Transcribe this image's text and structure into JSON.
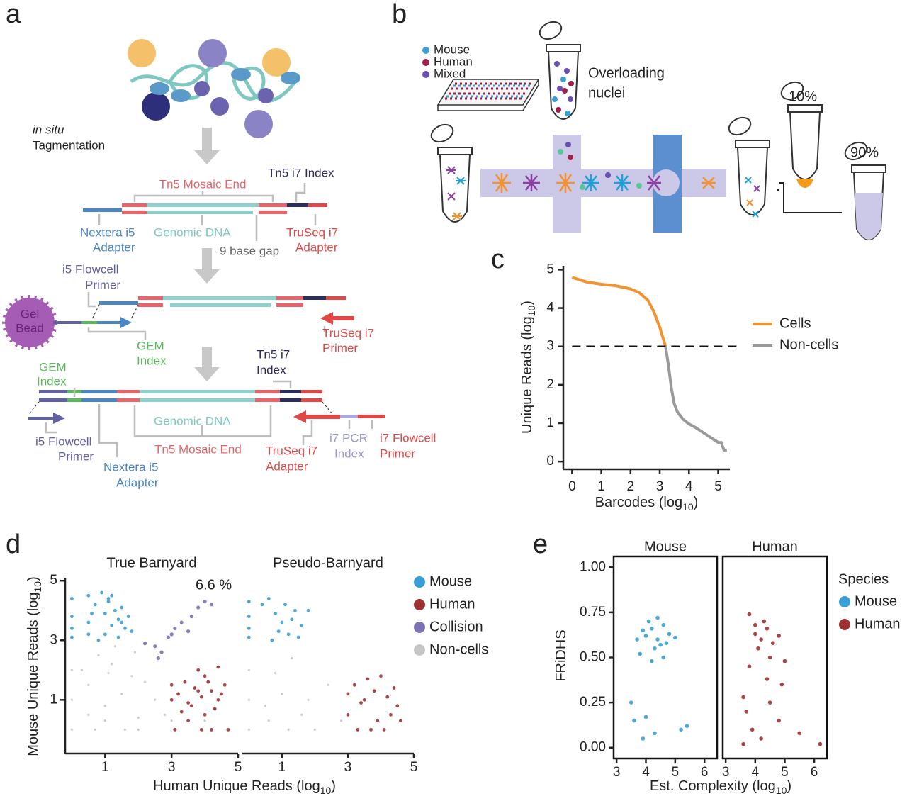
{
  "panel_a": {
    "letter": "a",
    "in_situ": "in situ",
    "tagmentation": "Tagmentation",
    "mosaic_end_1": "Tn5 Mosaic End",
    "tn5_i7_index_1": "Tn5 i7 Index",
    "nextera_1": [
      "Nextera i5",
      "Adapter"
    ],
    "genomic_dna_1": "Genomic DNA",
    "gap": "9 base gap",
    "truseq_adapter_1": [
      "TruSeq i7",
      "Adapter"
    ],
    "i5_primer_1": [
      "i5 Flowcell",
      "Primer"
    ],
    "gel_bead": [
      "Gel",
      "Bead"
    ],
    "gem_index_1": [
      "GEM",
      "Index"
    ],
    "truseq_primer": [
      "TruSeq i7",
      "Primer"
    ],
    "tn5_i7_index_2": [
      "Tn5 i7",
      "Index"
    ],
    "gem_index_2": [
      "GEM",
      "Index"
    ],
    "genomic_dna_2": "Genomic DNA",
    "mosaic_end_2": "Tn5 Mosaic End",
    "i5_primer_2": [
      "i5 Flowcell",
      "Primer"
    ],
    "nextera_2": [
      "Nextera i5",
      "Adapter"
    ],
    "truseq_adapter_2": [
      "TruSeq i7",
      "Adapter"
    ],
    "i7_pcr_index": [
      "i7 PCR",
      "Index"
    ],
    "i7_flowcell_primer": [
      "i7 Flowcell",
      "Primer"
    ]
  },
  "panel_b": {
    "letter": "b",
    "legend": [
      "Mouse",
      "Human",
      "Mixed"
    ],
    "overloading": [
      "Overloading",
      "nuclei"
    ],
    "fraction_small": "10%",
    "fraction_large": "90%"
  },
  "chart_data": [
    {
      "type": "line",
      "panel_label": "c",
      "xlabel": {
        "text": "Barcodes (log",
        "sub": "10",
        "end": ")"
      },
      "ylabel": {
        "text": "Unique Reads (log",
        "sub": "10",
        "end": ")"
      },
      "xlim": [
        -0.3,
        5.4
      ],
      "ylim": [
        -0.2,
        5.1
      ],
      "xticks": [
        0,
        1,
        2,
        3,
        4,
        5
      ],
      "yticks": [
        0,
        1,
        2,
        3,
        4,
        5
      ],
      "threshold": 3,
      "series": [
        {
          "name": "Cells",
          "color": "#f39231",
          "x": [
            0,
            0.2,
            0.5,
            1,
            1.5,
            2,
            2.3,
            2.6,
            2.8,
            3.0,
            3.2
          ],
          "values": [
            4.8,
            4.75,
            4.68,
            4.62,
            4.58,
            4.5,
            4.4,
            4.2,
            3.9,
            3.5,
            3.0
          ]
        },
        {
          "name": "Non-cells",
          "color": "#999999",
          "x": [
            3.2,
            3.3,
            3.4,
            3.5,
            3.6,
            3.8,
            4.0,
            4.2,
            4.4,
            4.6,
            4.8,
            5.0,
            5.1,
            5.2,
            5.3
          ],
          "values": [
            3.0,
            2.5,
            1.9,
            1.5,
            1.3,
            1.1,
            0.98,
            0.9,
            0.8,
            0.7,
            0.6,
            0.5,
            0.5,
            0.3,
            0.3
          ]
        }
      ]
    },
    {
      "type": "scatter",
      "panel_label": "d",
      "xlabel": {
        "text": "Human Unique Reads (log",
        "sub": "10",
        "end": ")"
      },
      "ylabel": {
        "text": "Mouse Unique Reads (log",
        "sub": "10",
        "end": ")"
      },
      "xlim": [
        -0.2,
        5.0
      ],
      "ylim": [
        -0.8,
        5.1
      ],
      "xticks": [
        1,
        3,
        5
      ],
      "yticks": [
        1,
        3,
        5
      ],
      "facets": [
        {
          "title": "True Barnyard",
          "annotation": "6.6 %"
        },
        {
          "title": "Pseudo-Barnyard"
        }
      ],
      "series": [
        {
          "name": "Mouse",
          "color": "#3a9fd6",
          "x": [
            [
              0,
              0,
              0,
              0,
              0.5,
              0.5,
              0.5,
              0.7,
              0.9,
              1,
              1.1,
              1.2,
              1.3,
              1.4,
              1.5,
              1.6,
              1.7,
              1.8,
              0.8,
              1.0,
              1.2,
              1.5,
              0.6,
              1.1,
              1.4
            ],
            [
              0,
              0,
              0,
              0,
              0.4,
              0.6,
              0.8,
              1.0,
              1.2,
              1.4,
              1.6,
              1.8,
              0.9,
              1.1,
              0.7,
              1.3,
              1.5
            ]
          ],
          "values": [
            [
              4.4,
              3.8,
              3.4,
              3.1,
              4.5,
              3.6,
              3.2,
              4.2,
              4.6,
              3.9,
              4.3,
              3.5,
              4.0,
              3.7,
              4.1,
              3.4,
              3.8,
              3.3,
              3.0,
              3.2,
              4.5,
              3.6,
              3.9,
              4.4,
              3.1
            ],
            [
              4.3,
              3.8,
              3.4,
              3.1,
              4.2,
              4.4,
              3.9,
              3.6,
              3.2,
              4.0,
              3.5,
              4.0,
              3.3,
              4.2,
              3.0,
              3.7,
              3.1
            ]
          ]
        },
        {
          "name": "Human",
          "color": "#9e3232",
          "x": [
            [
              3,
              3.2,
              3.4,
              3.5,
              3.7,
              3.9,
              4.0,
              4.2,
              4.4,
              4.6,
              3.3,
              3.6,
              3.8,
              4.1,
              4.3,
              4.5,
              3.1,
              3.9,
              4.2,
              4.7,
              3.5,
              4.0,
              3.0,
              3.8,
              4.4
            ],
            [
              3,
              3.2,
              3.4,
              3.6,
              3.8,
              4.0,
              4.2,
              4.4,
              4.5,
              3.3,
              3.7,
              4.1,
              3.0,
              3.9,
              4.3,
              4.6,
              3.5
            ]
          ],
          "values": [
            [
              1.5,
              1.2,
              1.6,
              0.9,
              1.4,
              1.1,
              1.8,
              1.3,
              1.0,
              1.5,
              0.6,
              0.8,
              2.0,
              1.6,
              0.7,
              1.2,
              0,
              0,
              0,
              0,
              0.3,
              0.5,
              1.0,
              1.3,
              2.1
            ],
            [
              1.2,
              1.5,
              0.9,
              1.7,
              1.3,
              1.8,
              1.1,
              1.4,
              0.8,
              0,
              0,
              0,
              0.5,
              0.3,
              0.5,
              0.3,
              1.0
            ]
          ]
        },
        {
          "name": "Collision",
          "color": "#7d70b3",
          "x": [
            [
              2.2,
              2.5,
              2.7,
              2.9,
              3.1,
              3.3,
              3.5,
              3.6,
              3.8,
              4.0,
              4.2,
              2.6,
              3.0
            ]
          ],
          "values": [
            [
              2.9,
              2.8,
              2.6,
              3.1,
              3.4,
              3.6,
              3.3,
              3.8,
              4.1,
              4.3,
              4.2,
              2.4,
              3.2
            ]
          ]
        },
        {
          "name": "Non-cells",
          "color": "#c6c6c6",
          "x": [
            [
              0,
              0,
              0,
              0.5,
              0.5,
              0.8,
              1,
              1.2,
              1.5,
              1.8,
              2,
              2.2,
              2.5,
              1.3,
              0.7,
              1.6,
              2.8,
              1.0,
              3.0,
              2.0,
              0.3,
              4.0,
              1.1,
              1.9
            ],
            [
              0,
              0,
              0,
              0.5,
              0.8,
              1.0,
              1.3,
              1.6,
              2.0,
              0.6,
              1.2,
              2.4,
              1.8,
              2.8
            ]
          ],
          "values": [
            [
              0,
              1,
              2,
              0.5,
              1.5,
              2.5,
              0.8,
              2.2,
              1.2,
              1.8,
              0.4,
              1.6,
              1.0,
              2.8,
              0,
              0,
              0.5,
              0.3,
              0.3,
              0,
              2.0,
              0.3,
              1.9,
              2.6
            ],
            [
              0,
              1,
              2,
              0.8,
              1.9,
              1.2,
              2.4,
              0.5,
              0,
              0.3,
              0,
              1.5,
              1.0,
              0.3
            ]
          ]
        }
      ]
    },
    {
      "type": "scatter",
      "panel_label": "e",
      "xlabel": {
        "text": "Est. Complexity (log",
        "sub": "10",
        "end": ")"
      },
      "ylabel": {
        "text": "FRiDHS"
      },
      "xlim": [
        2.9,
        6.43
      ],
      "ylim": [
        -0.06,
        1.06
      ],
      "xticks": [
        3,
        4,
        5,
        6
      ],
      "yticks": [
        {
          "value": 0,
          "label": "0.00"
        },
        0.25,
        {
          "value": 0.5,
          "label": "0.50"
        },
        0.75,
        {
          "value": 1,
          "label": "1.00"
        }
      ],
      "facets": [
        {
          "title": "Mouse"
        },
        {
          "title": "Human"
        }
      ],
      "legend_title": "Species",
      "series": [
        {
          "name": "Mouse",
          "color": "#3a9fd6",
          "x": [
            [
              4.0,
              4.2,
              4.4,
              4.6,
              4.8,
              4.3,
              4.1,
              4.5,
              3.8,
              3.9,
              4.7,
              5.0,
              4.4,
              4.2,
              3.7,
              4.6,
              3.5,
              3.6,
              3.9,
              5.2,
              5.4,
              4.0,
              4.3
            ]
          ],
          "values": [
            [
              0.62,
              0.66,
              0.6,
              0.68,
              0.63,
              0.55,
              0.7,
              0.57,
              0.52,
              0.65,
              0.58,
              0.61,
              0.72,
              0.48,
              0.6,
              0.5,
              0.25,
              0.15,
              0.05,
              0.1,
              0.12,
              0.17,
              0.08
            ]
          ]
        },
        {
          "name": "Human",
          "color": "#9e3232",
          "x": [
            [],
            [
              4.0,
              4.2,
              4.4,
              4.6,
              4.8,
              4.3,
              4.1,
              4.5,
              3.8,
              3.6,
              4.9,
              5.0,
              3.7,
              3.9,
              4.5,
              4.2,
              3.6,
              4.8,
              5.5,
              6.2,
              4.0,
              3.8,
              4.4
            ]
          ],
          "values": [
            [],
            [
              0.63,
              0.6,
              0.66,
              0.58,
              0.62,
              0.7,
              0.55,
              0.5,
              0.45,
              0.28,
              0.35,
              0.48,
              0.2,
              0.1,
              0.25,
              0.05,
              0.02,
              0.15,
              0.08,
              0.02,
              0.68,
              0.74,
              0.38
            ]
          ]
        }
      ]
    }
  ]
}
